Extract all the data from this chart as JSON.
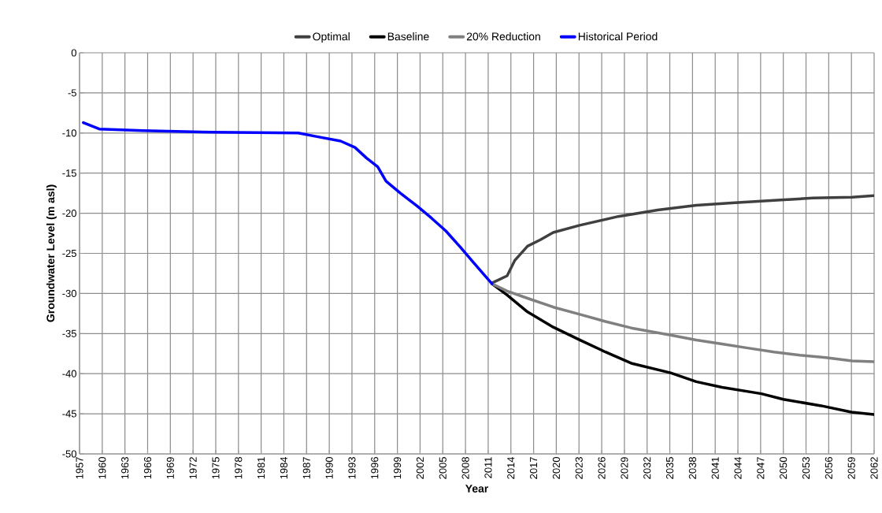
{
  "chart_data": {
    "type": "line",
    "xlabel": "Year",
    "ylabel": "Groundwater Level (m asl)",
    "xlim": [
      1957,
      2062
    ],
    "ylim": [
      -50,
      0
    ],
    "xticks": [
      1957,
      1960,
      1963,
      1966,
      1969,
      1972,
      1975,
      1978,
      1981,
      1984,
      1987,
      1990,
      1993,
      1996,
      1999,
      2002,
      2005,
      2008,
      2011,
      2014,
      2017,
      2020,
      2023,
      2026,
      2029,
      2032,
      2035,
      2038,
      2041,
      2044,
      2047,
      2050,
      2053,
      2056,
      2059,
      2062
    ],
    "yticks": [
      0,
      -5,
      -10,
      -15,
      -20,
      -25,
      -30,
      -35,
      -40,
      -45,
      -50
    ],
    "grid": true,
    "legend": "top",
    "marker": "none",
    "line_style": "solid",
    "series": [
      {
        "name": "Optimal",
        "color": "#404040",
        "x": [
          2011.5,
          2013.5,
          2014.5,
          2016.2,
          2017.9,
          2019.6,
          2023.1,
          2028.2,
          2033.4,
          2038.5,
          2043.6,
          2048.8,
          2053.9,
          2059.1,
          2062
        ],
        "values": [
          -28.7,
          -27.8,
          -25.9,
          -24.1,
          -23.3,
          -22.4,
          -21.5,
          -20.4,
          -19.6,
          -19.0,
          -18.7,
          -18.4,
          -18.1,
          -18.0,
          -17.8
        ]
      },
      {
        "name": "Baseline",
        "color": "#000000",
        "x": [
          2011.5,
          2013.5,
          2016.2,
          2019.6,
          2023.1,
          2026.5,
          2029.9,
          2035.1,
          2038.5,
          2041.9,
          2047.1,
          2050,
          2055,
          2059,
          2062
        ],
        "values": [
          -28.8,
          -30.2,
          -32.3,
          -34.2,
          -35.8,
          -37.3,
          -38.7,
          -39.9,
          -41.0,
          -41.7,
          -42.5,
          -43.2,
          -44.0,
          -44.8,
          -45.1
        ]
      },
      {
        "name": "20% Reduction",
        "color": "#808080",
        "x": [
          2011.5,
          2013.5,
          2016.2,
          2019.6,
          2023.1,
          2026.5,
          2029.9,
          2035.1,
          2038.5,
          2041.9,
          2045.3,
          2048.8,
          2052.2,
          2055.6,
          2059.1,
          2062
        ],
        "values": [
          -28.8,
          -29.7,
          -30.6,
          -31.7,
          -32.6,
          -33.5,
          -34.3,
          -35.2,
          -35.8,
          -36.3,
          -36.8,
          -37.3,
          -37.7,
          -38.0,
          -38.4,
          -38.5
        ]
      },
      {
        "name": "Historical Period",
        "color": "#0000ff",
        "x": [
          1957.5,
          1959.6,
          1965.3,
          1974.6,
          1985.9,
          1988.1,
          1991.5,
          1993.4,
          1994.9,
          1996.4,
          1997.5,
          1999.4,
          2001.6,
          2003.5,
          2005.4,
          2007.3,
          2009.1,
          2011.5
        ],
        "values": [
          -8.7,
          -9.5,
          -9.7,
          -9.9,
          -10.0,
          -10.4,
          -11.0,
          -11.8,
          -13.1,
          -14.2,
          -16.0,
          -17.5,
          -19.1,
          -20.6,
          -22.2,
          -24.2,
          -26.2,
          -28.8
        ]
      }
    ]
  }
}
